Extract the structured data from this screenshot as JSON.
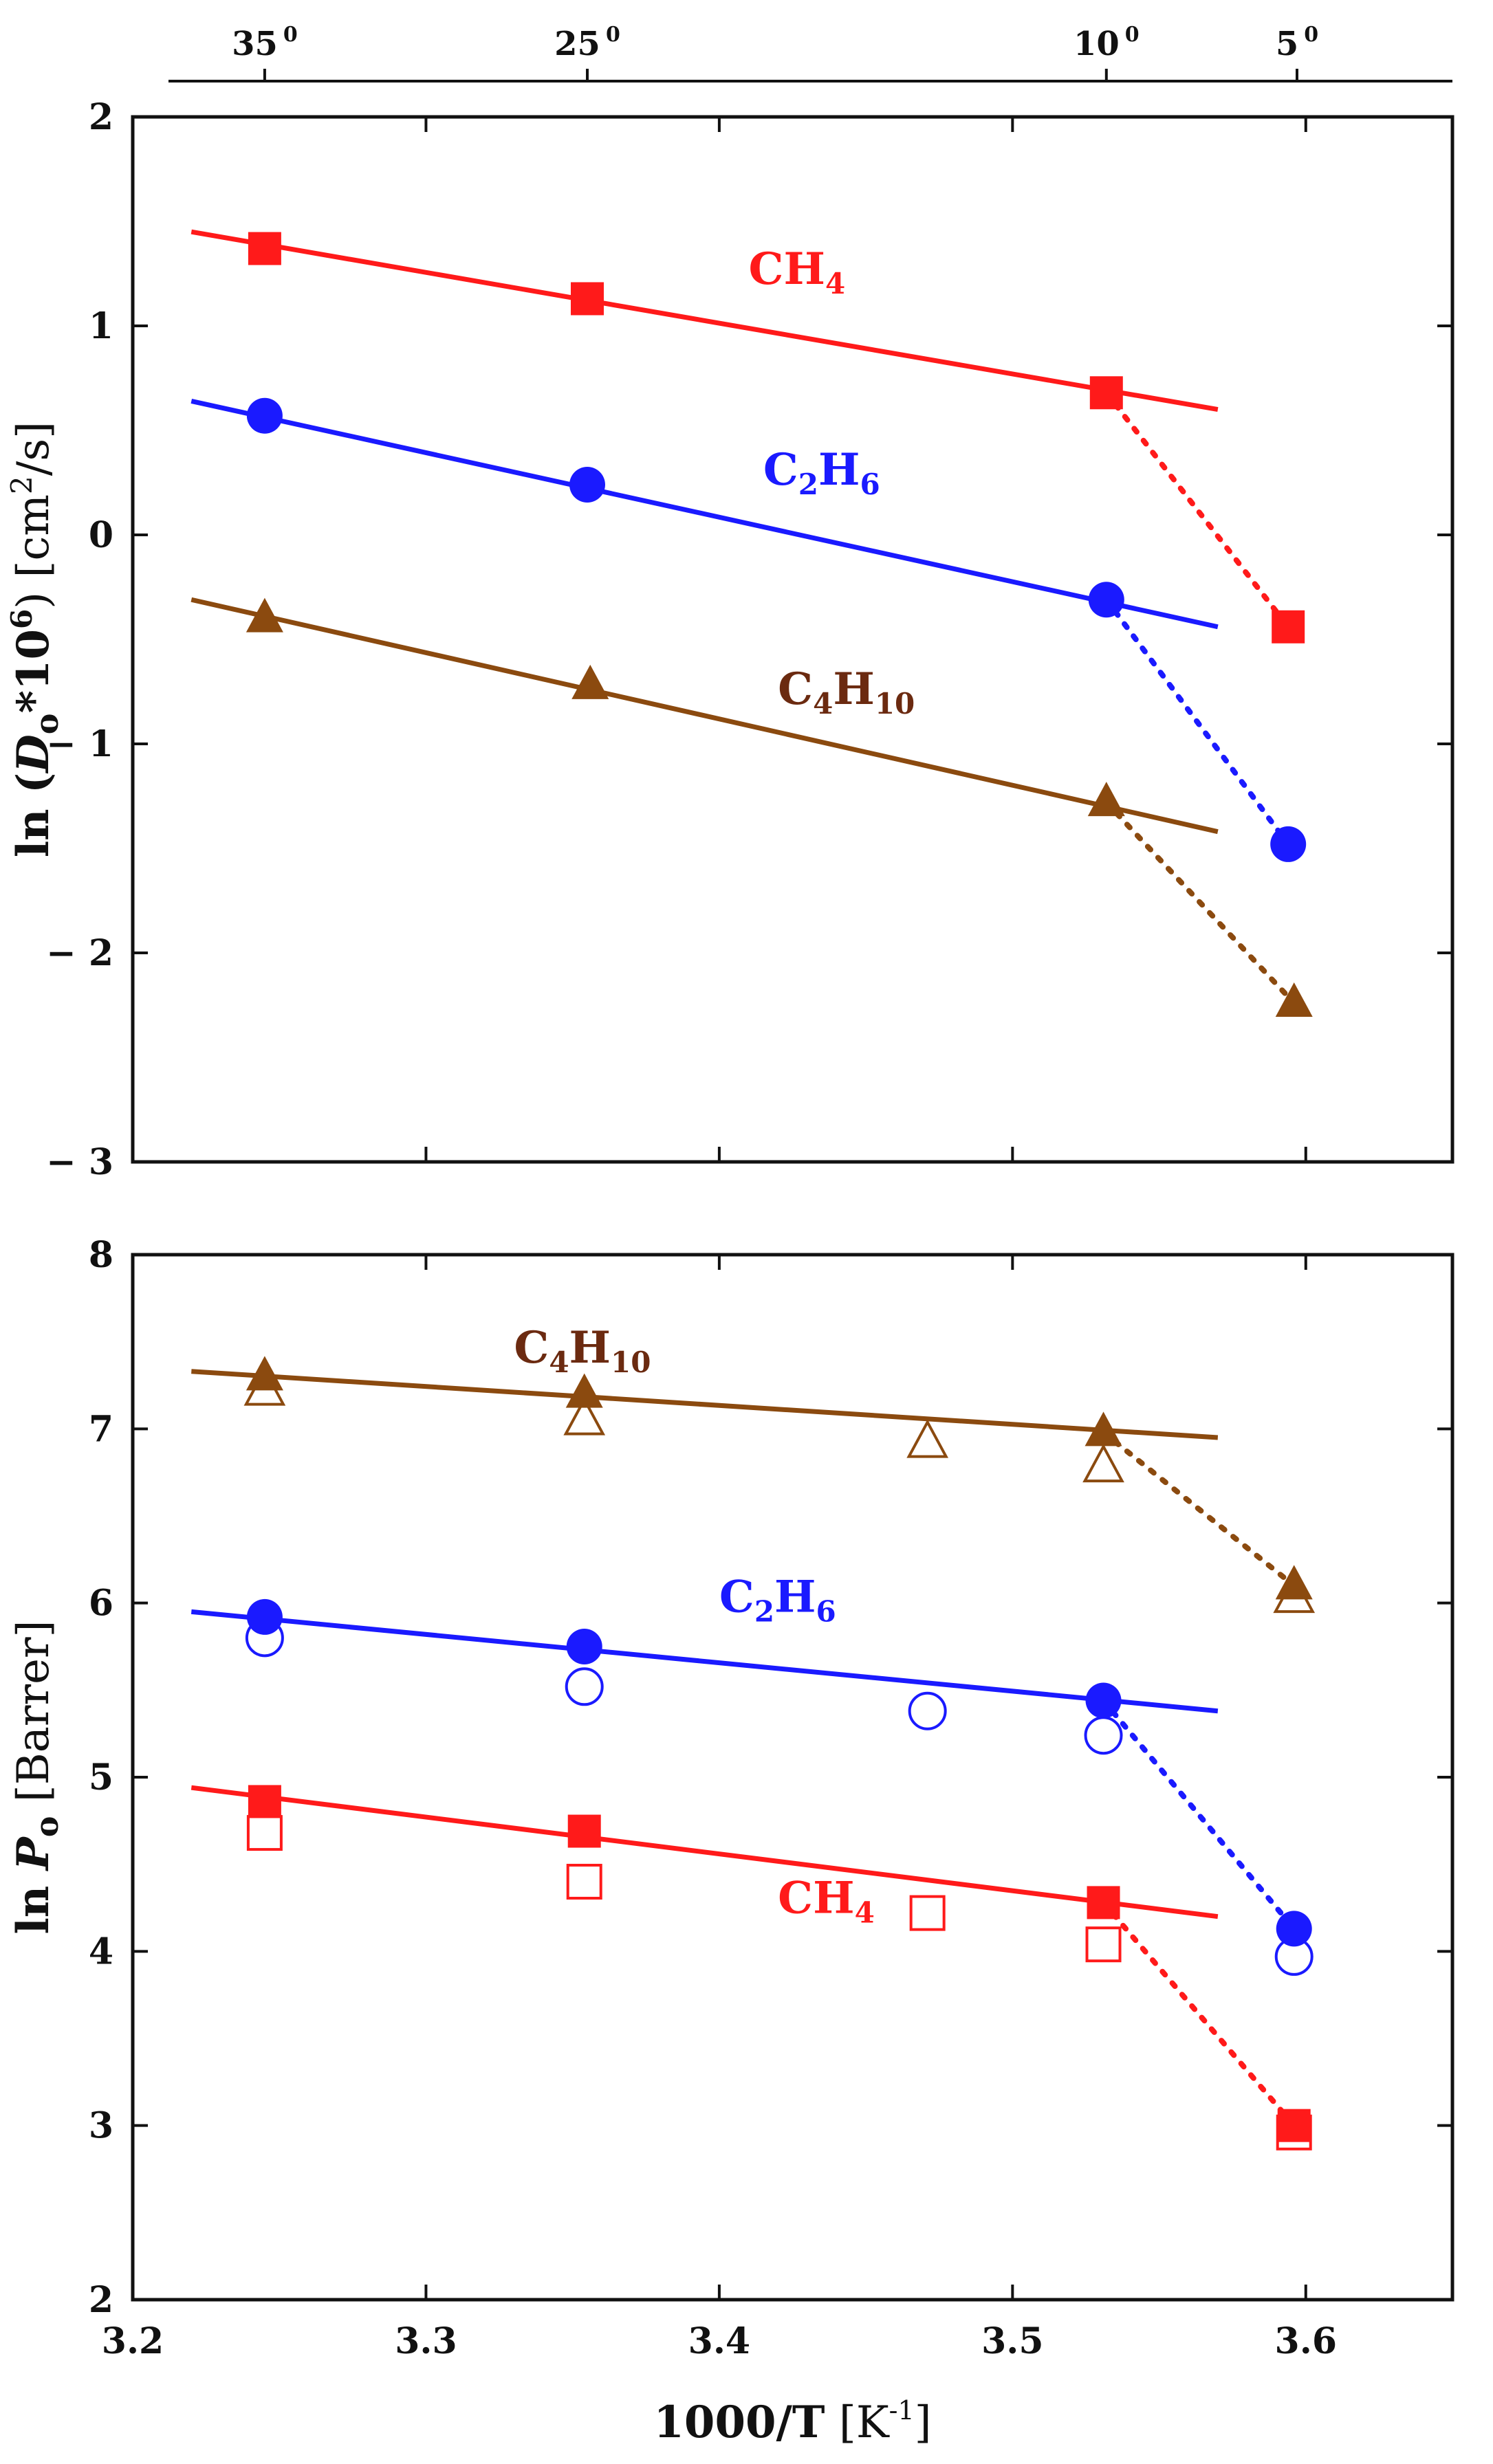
{
  "chart_data": [
    {
      "type": "scatter",
      "panel": "top",
      "xlabel": "",
      "ylabel_parts": {
        "pre": "ln (",
        "italic": "D",
        "sub": "o",
        "mid": "*10",
        "sup": "6",
        "post": ") [cm",
        "unit_sup": "2",
        "unit_post": "/s]"
      },
      "xlim": [
        3.2,
        3.65
      ],
      "ylim": [
        -3,
        2
      ],
      "x_ticks": [
        3.2,
        3.3,
        3.4,
        3.5,
        3.6
      ],
      "y_ticks": [
        -3,
        -2,
        -1,
        0,
        1,
        2
      ],
      "y_tick_labels": [
        "− 3",
        "− 2",
        "− 1",
        "0",
        "1",
        "2"
      ],
      "top_axis": {
        "ticks": [
          {
            "x": 3.245,
            "label": "35",
            "sup": "0"
          },
          {
            "x": 3.355,
            "label": "25",
            "sup": "0"
          },
          {
            "x": 3.532,
            "label": "10",
            "sup": "0"
          },
          {
            "x": 3.597,
            "label": "5",
            "sup": "0"
          }
        ]
      },
      "series": [
        {
          "name": "CH4",
          "label_main": "CH",
          "label_sub": "4",
          "color": "#ff1a1a",
          "marker": "square",
          "x": [
            3.245,
            3.355,
            3.532,
            3.594
          ],
          "y": [
            1.37,
            1.13,
            0.68,
            -0.44
          ],
          "fit": [
            [
              3.22,
              1.45
            ],
            [
              3.57,
              0.6
            ]
          ],
          "dotted": [
            [
              3.532,
              0.68
            ],
            [
              3.594,
              -0.44
            ]
          ],
          "label_at": [
            3.41,
            1.2
          ]
        },
        {
          "name": "C2H6",
          "label_main": "C",
          "label_sub": "2",
          "label_main2": "H",
          "label_sub2": "6",
          "color": "#1a1aff",
          "marker": "circle",
          "x": [
            3.245,
            3.355,
            3.532,
            3.594
          ],
          "y": [
            0.57,
            0.24,
            -0.31,
            -1.48
          ],
          "fit": [
            [
              3.22,
              0.64
            ],
            [
              3.57,
              -0.44
            ]
          ],
          "dotted": [
            [
              3.532,
              -0.31
            ],
            [
              3.594,
              -1.48
            ]
          ],
          "label_at": [
            3.415,
            0.24
          ]
        },
        {
          "name": "C4H10",
          "label_main": "C",
          "label_sub": "4",
          "label_main2": "H",
          "label_sub2": "10",
          "color": "#8b4a0f",
          "marker": "triangle",
          "x": [
            3.245,
            3.356,
            3.532,
            3.596
          ],
          "y": [
            -0.4,
            -0.72,
            -1.28,
            -2.24
          ],
          "fit": [
            [
              3.22,
              -0.31
            ],
            [
              3.57,
              -1.42
            ]
          ],
          "dotted": [
            [
              3.532,
              -1.28
            ],
            [
              3.596,
              -2.24
            ]
          ],
          "label_at": [
            3.42,
            -0.81
          ],
          "label_color": "#6b2a10"
        }
      ]
    },
    {
      "type": "scatter",
      "panel": "bottom",
      "xlabel": "1000/T [K⁻¹]",
      "xlabel_parts": {
        "main": "1000/T",
        "unit_pre": " [K",
        "unit_sup": "-1",
        "unit_post": "]"
      },
      "ylabel_parts": {
        "pre": "ln ",
        "italic": "P",
        "sub": "o",
        "post": " [Barrer]"
      },
      "xlim": [
        3.2,
        3.65
      ],
      "ylim": [
        2,
        8
      ],
      "x_ticks": [
        3.2,
        3.3,
        3.4,
        3.5,
        3.6
      ],
      "x_tick_labels": [
        "3.2",
        "3.3",
        "3.4",
        "3.5",
        "3.6"
      ],
      "y_ticks": [
        2,
        3,
        4,
        5,
        6,
        7,
        8
      ],
      "y_tick_labels": [
        "2",
        "3",
        "4",
        "5",
        "6",
        "7",
        "8"
      ],
      "series": [
        {
          "name": "C4H10",
          "label_main": "C",
          "label_sub": "4",
          "label_main2": "H",
          "label_sub2": "10",
          "color": "#8b4a0f",
          "marker": "triangle",
          "label_color": "#6b2a10",
          "x": [
            3.245,
            3.354,
            3.531,
            3.596
          ],
          "y": [
            7.3,
            7.2,
            6.98,
            6.1
          ],
          "open_x": [
            3.245,
            3.354,
            3.471,
            3.531,
            3.596
          ],
          "open_y": [
            7.22,
            7.05,
            6.92,
            6.78,
            6.03
          ],
          "fit": [
            [
              3.22,
              7.33
            ],
            [
              3.57,
              6.95
            ]
          ],
          "dotted": [
            [
              3.531,
              6.98
            ],
            [
              3.596,
              6.1
            ]
          ],
          "label_at": [
            3.33,
            7.38
          ]
        },
        {
          "name": "C2H6",
          "label_main": "C",
          "label_sub": "2",
          "label_main2": "H",
          "label_sub2": "6",
          "color": "#1a1aff",
          "marker": "circle",
          "x": [
            3.245,
            3.354,
            3.531,
            3.596
          ],
          "y": [
            5.92,
            5.75,
            5.44,
            4.13
          ],
          "open_x": [
            3.245,
            3.354,
            3.471,
            3.531,
            3.596
          ],
          "open_y": [
            5.8,
            5.52,
            5.38,
            5.24,
            3.97
          ],
          "fit": [
            [
              3.22,
              5.95
            ],
            [
              3.57,
              5.38
            ]
          ],
          "dotted": [
            [
              3.531,
              5.44
            ],
            [
              3.596,
              4.13
            ]
          ],
          "label_at": [
            3.4,
            5.95
          ]
        },
        {
          "name": "CH4",
          "label_main": "CH",
          "label_sub": "4",
          "color": "#ff1a1a",
          "marker": "square",
          "x": [
            3.245,
            3.354,
            3.531,
            3.596
          ],
          "y": [
            4.86,
            4.69,
            4.28,
            3.0
          ],
          "open_x": [
            3.245,
            3.354,
            3.471,
            3.531,
            3.596
          ],
          "open_y": [
            4.68,
            4.4,
            4.22,
            4.04,
            2.96
          ],
          "fit": [
            [
              3.22,
              4.94
            ],
            [
              3.57,
              4.2
            ]
          ],
          "dotted": [
            [
              3.531,
              4.28
            ],
            [
              3.596,
              3.0
            ]
          ],
          "label_at": [
            3.42,
            4.22
          ]
        }
      ]
    }
  ]
}
